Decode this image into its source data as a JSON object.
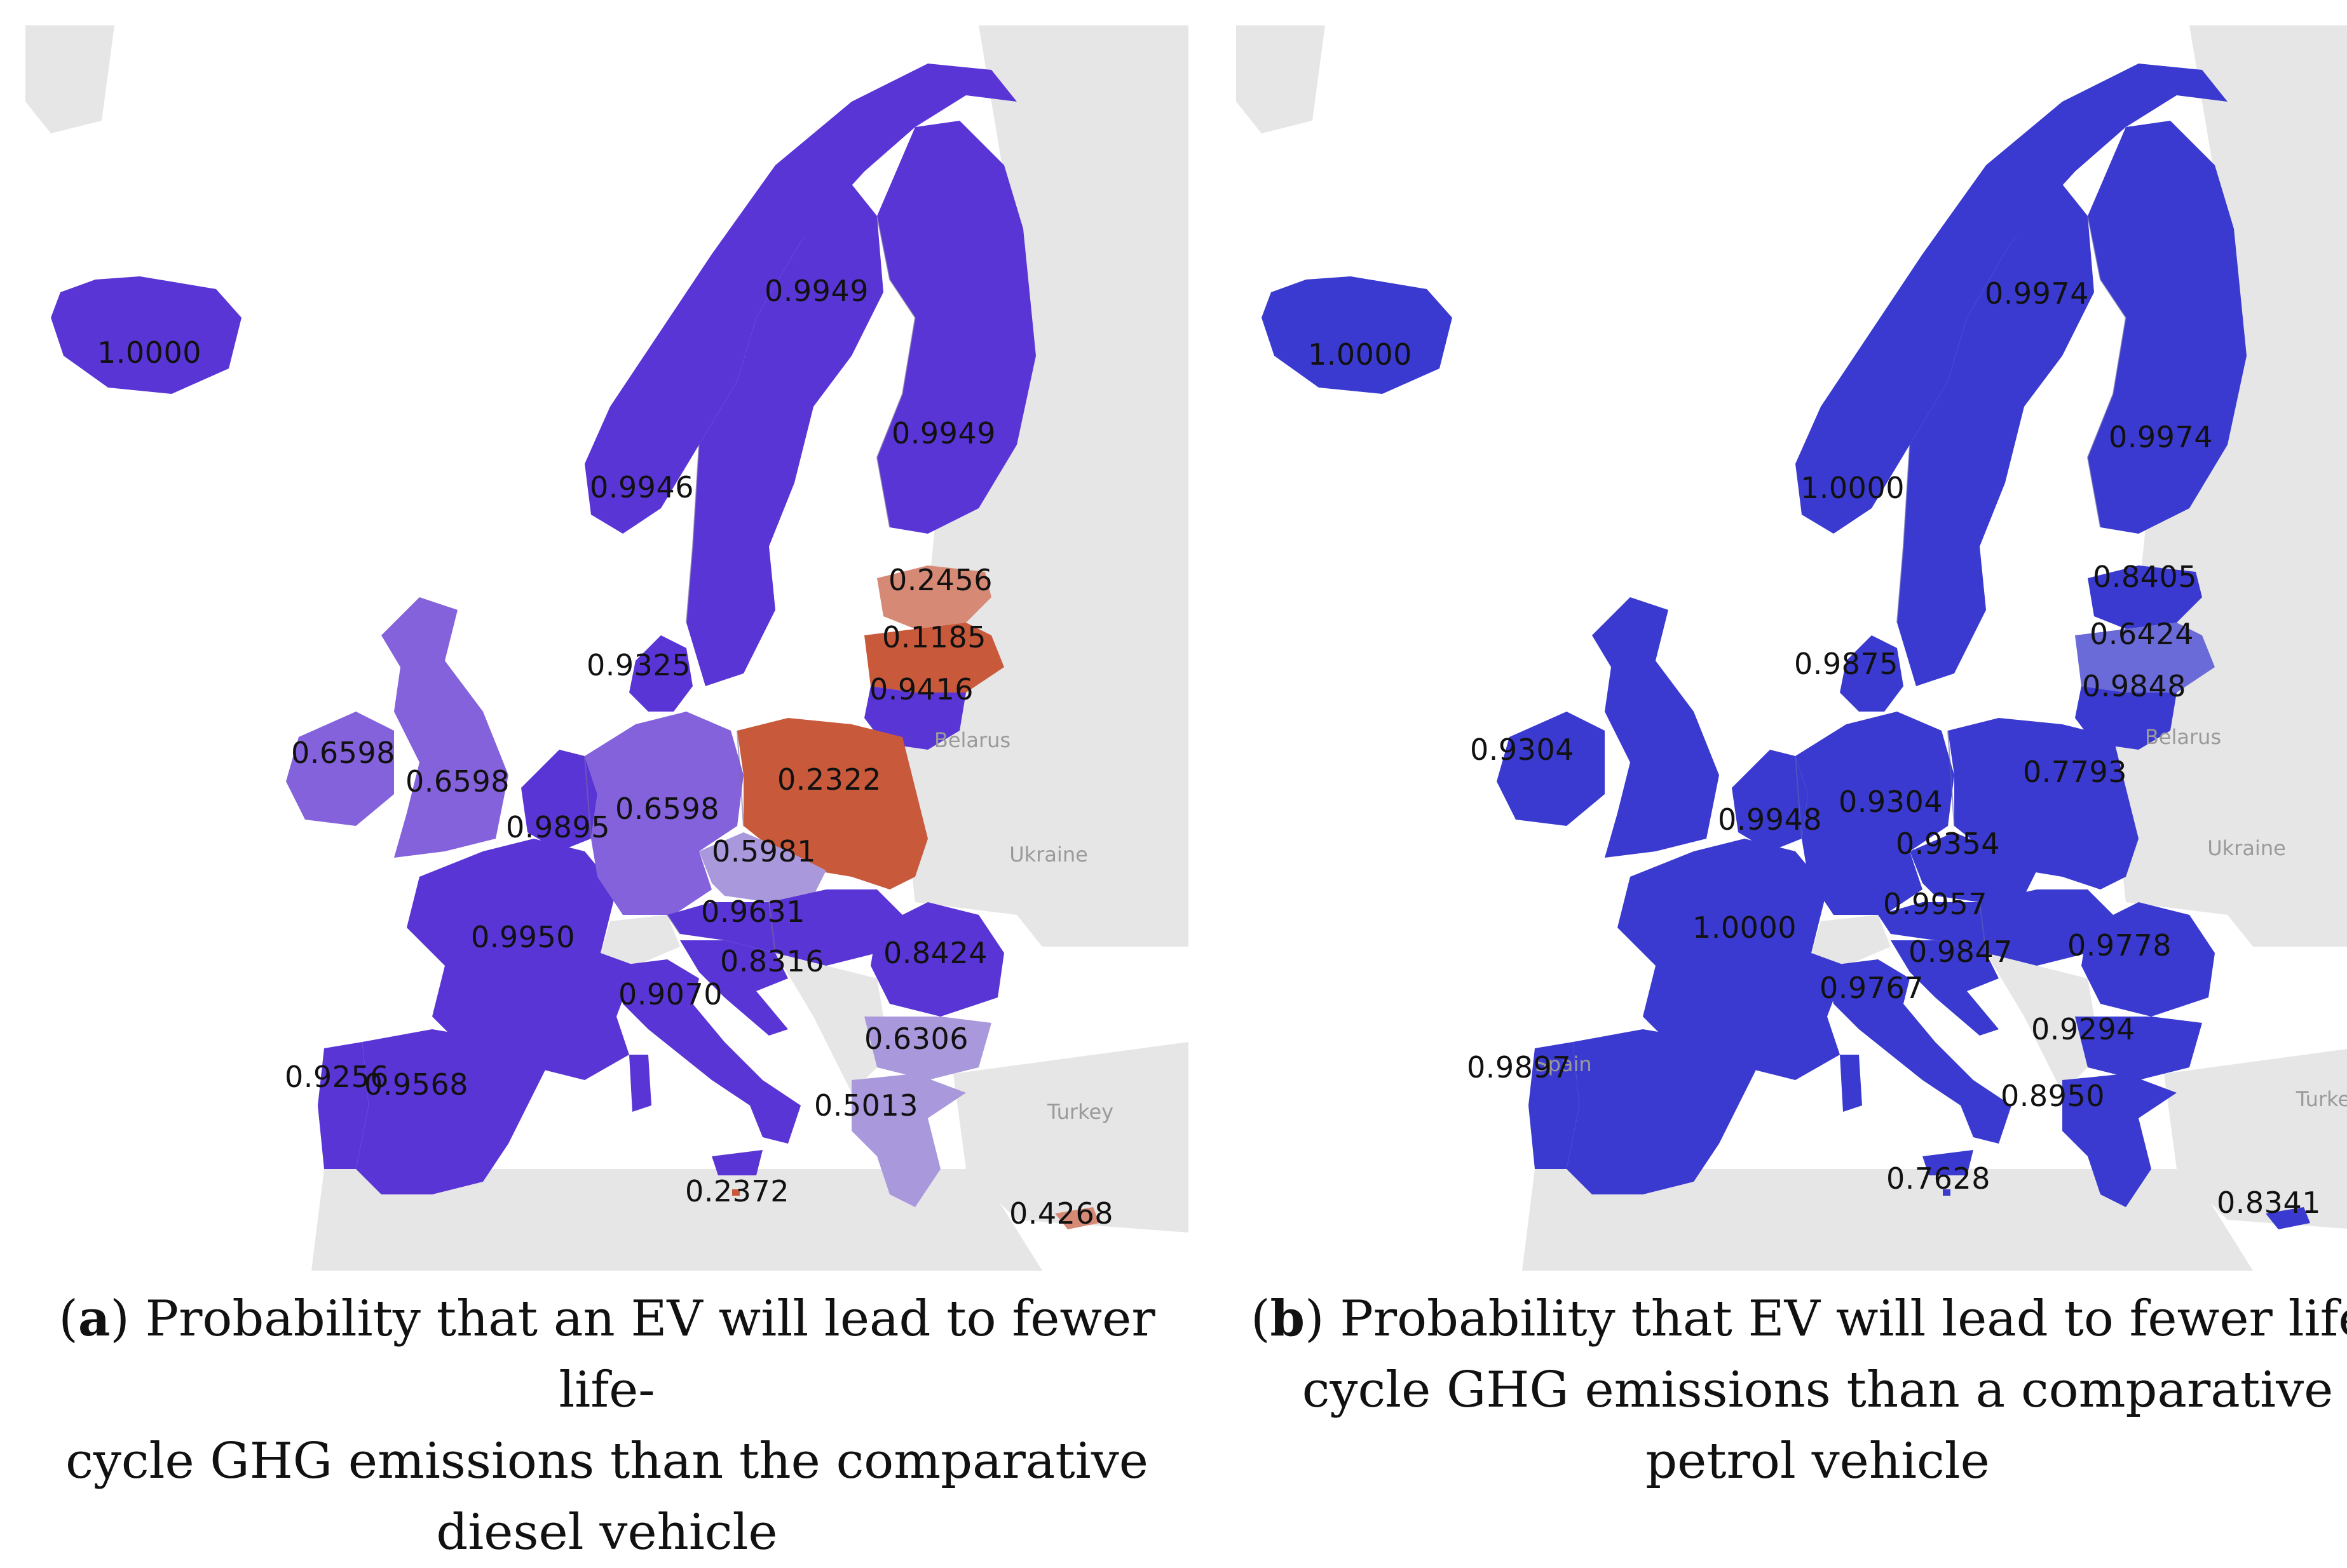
{
  "colors": {
    "land_bg": "#e6e6e6",
    "sea": "#ffffff",
    "purple_high": "#5a35d6",
    "purple_mid": "#8462dc",
    "purple_light": "#a999dc",
    "orange_dark": "#c8593a",
    "orange_light": "#d68a76",
    "blue_b": "#3a3ad0",
    "blue_b_mid": "#6a6ad8"
  },
  "panel_a": {
    "country_labels": {
      "belarus": "Belarus",
      "ukraine": "Ukraine",
      "turkey": "Turkey"
    },
    "values": {
      "iceland": "1.0000",
      "sweden": "0.9949",
      "finland": "0.9949",
      "norway": "0.9946",
      "estonia": "0.2456",
      "latvia": "0.1185",
      "lithuania": "0.9416",
      "denmark": "0.9325",
      "ireland": "0.6598",
      "uk": "0.6598",
      "germany": "0.6598",
      "poland": "0.2322",
      "benelux": "0.9895",
      "czechia": "0.5981",
      "austria": "0.9631",
      "france": "0.9950",
      "croatia": "0.8316",
      "romania": "0.8424",
      "italy": "0.9070",
      "bulgaria": "0.6306",
      "portugal": "0.9256",
      "spain": "0.9568",
      "greece": "0.5013",
      "malta": "0.2372",
      "cyprus": "0.4268"
    },
    "caption": {
      "letter": "a",
      "line1": ") Probability that an EV will lead to fewer life-",
      "line2": "cycle GHG emissions than the comparative",
      "line3": "diesel vehicle"
    }
  },
  "panel_b": {
    "country_labels": {
      "belarus": "Belarus",
      "ukraine": "Ukraine",
      "turkey": "Turkey",
      "spain": "Spain"
    },
    "values": {
      "iceland": "1.0000",
      "sweden": "0.9974",
      "finland": "0.9974",
      "norway": "1.0000",
      "estonia": "0.8405",
      "latvia": "0.6424",
      "lithuania": "0.9848",
      "denmark": "0.9875",
      "ireland": "0.9304",
      "germany": "0.9304",
      "poland": "0.7793",
      "benelux": "0.9948",
      "czechia": "0.9354",
      "austria": "0.9957",
      "france": "1.0000",
      "croatia": "0.9847",
      "romania": "0.9778",
      "italy": "0.9767",
      "bulgaria": "0.9294",
      "portugal": "0.9897",
      "greece": "0.8950",
      "malta": "0.7628",
      "cyprus": "0.8341"
    },
    "caption": {
      "letter": "b",
      "line1": ") Probability that EV will lead to fewer life-",
      "line2": "cycle GHG emissions than a comparative",
      "line3": "petrol vehicle"
    }
  }
}
